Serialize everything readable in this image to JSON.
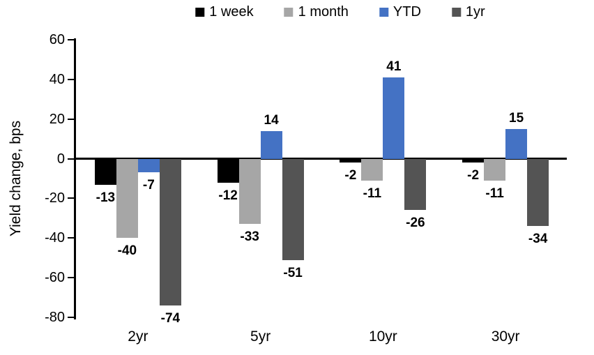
{
  "chart_data": {
    "type": "bar",
    "title": "",
    "ylabel": "Yield change, bps",
    "xlabel": "",
    "categories": [
      "2yr",
      "5yr",
      "10yr",
      "30yr"
    ],
    "series": [
      {
        "name": "1 week",
        "color": "#000000",
        "values": [
          -13,
          -12,
          -2,
          -2
        ]
      },
      {
        "name": "1 month",
        "color": "#A6A6A6",
        "values": [
          -40,
          -33,
          -11,
          -11
        ]
      },
      {
        "name": "YTD",
        "color": "#4472C4",
        "values": [
          -7,
          14,
          41,
          15
        ]
      },
      {
        "name": "1yr",
        "color": "#545454",
        "values": [
          -74,
          -51,
          -26,
          -34
        ]
      }
    ],
    "ylim": [
      -80,
      60
    ],
    "yticks": [
      60,
      40,
      20,
      0,
      -20,
      -40,
      -60,
      -80
    ],
    "grid": false,
    "legend_position": "top",
    "data_labels": true,
    "axis_color": "#000000",
    "background_color": "#FFFFFF"
  }
}
